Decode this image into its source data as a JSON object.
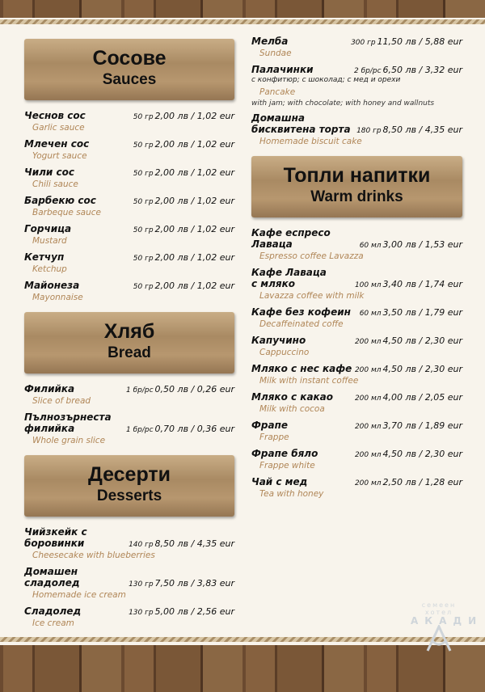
{
  "left": [
    {
      "title": "Сосове",
      "subtitle": "Sauces",
      "items": [
        {
          "name": "Чеснов сос",
          "qty": "50 гр",
          "price": "2,00 лв / 1,02 eur",
          "en": "Garlic sauce"
        },
        {
          "name": "Млечен сос",
          "qty": "50 гр",
          "price": "2,00 лв / 1,02 eur",
          "en": "Yogurt sauce"
        },
        {
          "name": "Чили сос",
          "qty": "50 гр",
          "price": "2,00 лв / 1,02 eur",
          "en": "Chili sauce"
        },
        {
          "name": "Барбекю сос",
          "qty": "50 гр",
          "price": "2,00 лв / 1,02 eur",
          "en": "Barbeque sauce"
        },
        {
          "name": "Горчица",
          "qty": "50 гр",
          "price": "2,00 лв / 1,02 eur",
          "en": "Mustard"
        },
        {
          "name": "Кетчуп",
          "qty": "50 гр",
          "price": "2,00 лв / 1,02 eur",
          "en": "Ketchup"
        },
        {
          "name": "Майонеза",
          "qty": "50 гр",
          "price": "2,00 лв / 1,02 eur",
          "en": "Mayonnaise"
        }
      ]
    },
    {
      "title": "Хляб",
      "subtitle": "Bread",
      "items": [
        {
          "name": "Филийка",
          "qty": "1 бр/pc",
          "price": "0,50 лв / 0,26 eur",
          "en": "Slice of bread"
        },
        {
          "name": "Пълнозърнеста\nфилийка",
          "qty": "1 бр/pc",
          "price": "0,70 лв / 0,36 eur",
          "en": "Whole grain slice"
        }
      ]
    },
    {
      "title": "Десерти",
      "subtitle": "Desserts",
      "items": [
        {
          "name": "Чийзкейк с\nборовинки",
          "qty": "140 гр",
          "price": "8,50 лв / 4,35 eur",
          "en": "Cheesecake with blueberries"
        },
        {
          "name": "Домашен сладолед",
          "qty": "130 гр",
          "price": "7,50 лв / 3,83 eur",
          "en": "Homemade ice cream"
        },
        {
          "name": "Сладолед",
          "qty": "130 гр",
          "price": "5,00 лв / 2,56 eur",
          "en": "Ice cream"
        }
      ]
    }
  ],
  "right": [
    {
      "items": [
        {
          "name": "Мелба",
          "qty": "300 гр",
          "price": "11,50 лв / 5,88 eur",
          "en": "Sundae"
        },
        {
          "name": "Палачинки",
          "qty": "2 бр/pc",
          "price": "6,50 лв / 3,32 eur",
          "note": "с конфитюр; с шоколад; с мед и орехи",
          "en": "Pancake",
          "note_en": "with jam; with chocolate; with honey and wallnuts"
        },
        {
          "name": "Домашна\nбисквитена торта",
          "qty": "180 гр",
          "price": "8,50 лв / 4,35 eur",
          "en": "Homemade biscuit cake"
        }
      ]
    },
    {
      "title": "Топли напитки",
      "subtitle": "Warm drinks",
      "items": [
        {
          "name": "Кафе еспресо Лаваца",
          "qty": "60 мл",
          "price": "3,00 лв / 1,53 eur",
          "en": "Espresso coffee Lavazza"
        },
        {
          "name": "Кафе Лаваца\nс мляко",
          "qty": "100 мл",
          "price": "3,40 лв / 1,74 eur",
          "en": "Lavazza coffee with milk"
        },
        {
          "name": "Кафе без кофеин",
          "qty": "60 мл",
          "price": "3,50 лв / 1,79 eur",
          "en": "Decaffeinated coffe"
        },
        {
          "name": "Капучино",
          "qty": "200 мл",
          "price": "4,50 лв / 2,30 eur",
          "en": "Cappuccino"
        },
        {
          "name": "Мляко с нес кафе",
          "qty": "200 мл",
          "price": "4,50 лв / 2,30 eur",
          "en": "Milk with instant coffee"
        },
        {
          "name": "Мляко с какао",
          "qty": "200 мл",
          "price": "4,00 лв / 2,05 eur",
          "en": "Milk with cocoa"
        },
        {
          "name": "Фрапе",
          "qty": "200 мл",
          "price": "3,70 лв / 1,89 eur",
          "en": "Frappe"
        },
        {
          "name": "Фрапе бяло",
          "qty": "200 мл",
          "price": "4,50 лв / 2,30 eur",
          "en": "Frappe white"
        },
        {
          "name": "Чай с мед",
          "qty": "200 мл",
          "price": "2,50 лв / 1,28 eur",
          "en": "Tea with honey"
        }
      ]
    }
  ],
  "logo": {
    "line1": "семеен",
    "line2": "хотел",
    "name": "АКАДИ"
  }
}
